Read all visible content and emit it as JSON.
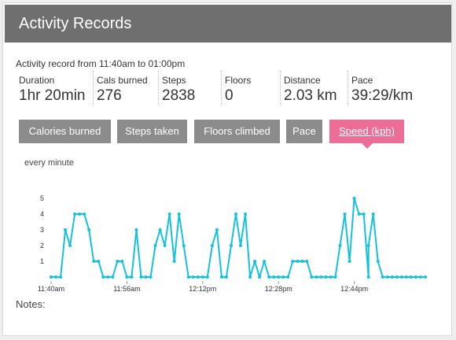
{
  "header": {
    "title": "Activity Records"
  },
  "summary": {
    "range": "Activity record from 11:40am to 01:00pm",
    "stats": [
      {
        "label": "Duration",
        "value": "1hr 20min"
      },
      {
        "label": "Cals burned",
        "value": "276"
      },
      {
        "label": "Steps",
        "value": "2838"
      },
      {
        "label": "Floors",
        "value": "0"
      },
      {
        "label": "Distance",
        "value": "2.03 km"
      },
      {
        "label": "Pace",
        "value": "39:29/km"
      }
    ]
  },
  "tabs": [
    {
      "label": "Calories burned",
      "active": false
    },
    {
      "label": "Steps taken",
      "active": false
    },
    {
      "label": "Floors climbed",
      "active": false
    },
    {
      "label": "Pace",
      "active": false
    },
    {
      "label": "Speed (kph)",
      "active": true
    }
  ],
  "chart_meta": {
    "interval_label": "every minute"
  },
  "notes_label": "Notes:",
  "colors": {
    "header": "#6f6f6f",
    "tab": "#8c8c8c",
    "tab_active": "#ec6d95",
    "line": "#16c1db"
  },
  "chart_data": {
    "type": "line",
    "title": "",
    "xlabel": "",
    "ylabel": "",
    "y_ticks": [
      1,
      2,
      3,
      4,
      5
    ],
    "ylim": [
      0,
      5.3
    ],
    "x_tick_labels": [
      "11:40am",
      "11:56am",
      "12:12pm",
      "12:28pm",
      "12:44pm"
    ],
    "x": [
      0,
      1,
      2,
      3,
      4,
      5,
      6,
      7,
      8,
      9,
      10,
      11,
      12,
      13,
      14,
      15,
      16,
      17,
      18,
      19,
      20,
      21,
      22,
      23,
      24,
      25,
      26,
      27,
      28,
      29,
      30,
      31,
      32,
      33,
      34,
      35,
      36,
      37,
      38,
      39,
      40,
      41,
      42,
      43,
      44,
      45,
      46,
      47,
      48,
      49,
      50,
      51,
      52,
      53,
      54,
      55,
      56,
      57,
      58,
      59,
      60,
      61,
      62,
      63,
      64,
      65,
      66,
      67,
      67,
      68,
      69,
      70,
      71,
      72,
      73,
      74,
      75,
      76,
      77,
      78,
      79
    ],
    "series": [
      {
        "name": "",
        "values": [
          0,
          0,
          0,
          3,
          2,
          4,
          4,
          4,
          3,
          1,
          1,
          0,
          0,
          0,
          1,
          1,
          0,
          0,
          3,
          0,
          0,
          0,
          2,
          3,
          2,
          4,
          1,
          4,
          2,
          0,
          0,
          0,
          0,
          0,
          2,
          3,
          0,
          0,
          2,
          4,
          2,
          4,
          0,
          1,
          0,
          1,
          0,
          0,
          0,
          0,
          0,
          1,
          1,
          1,
          1,
          0,
          0,
          0,
          0,
          0,
          0,
          2,
          4,
          1,
          5,
          4,
          4,
          0,
          2,
          4,
          1,
          0,
          0,
          0,
          0,
          0,
          0,
          0,
          0,
          0,
          0
        ]
      }
    ]
  }
}
